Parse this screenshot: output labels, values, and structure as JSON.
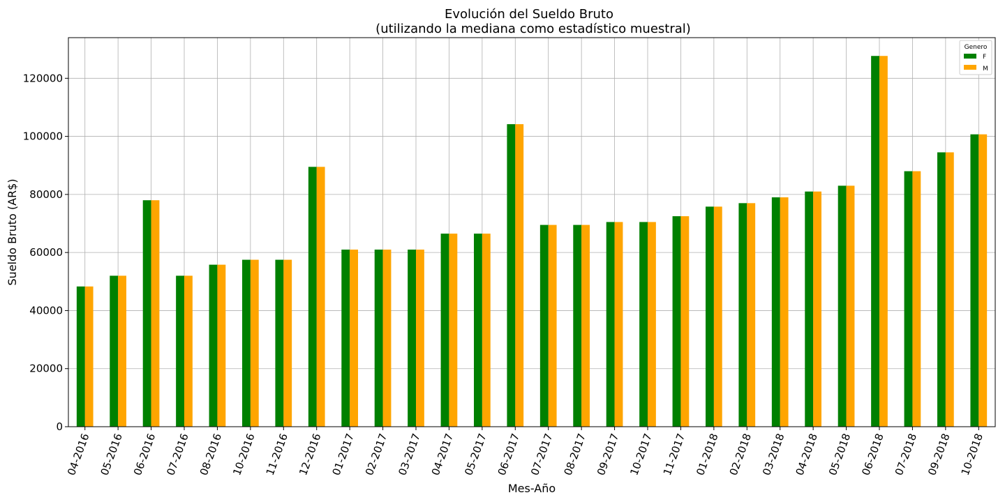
{
  "chart_data": {
    "type": "bar",
    "title_line1": "Evolución del Sueldo Bruto",
    "title_line2": "(utilizando la mediana como estadístico muestral)",
    "xlabel": "Mes-Año",
    "ylabel": "Sueldo Bruto (AR$)",
    "ylim": [
      0,
      134000
    ],
    "yticks": [
      0,
      20000,
      40000,
      60000,
      80000,
      100000,
      120000
    ],
    "grid": true,
    "legend_placement": "top-right",
    "legend_title": "Genero",
    "categories": [
      "04-2016",
      "05-2016",
      "06-2016",
      "07-2016",
      "08-2016",
      "10-2016",
      "11-2016",
      "12-2016",
      "01-2017",
      "02-2017",
      "03-2017",
      "04-2017",
      "05-2017",
      "06-2017",
      "07-2017",
      "08-2017",
      "09-2017",
      "10-2017",
      "11-2017",
      "01-2018",
      "02-2018",
      "03-2018",
      "04-2018",
      "05-2018",
      "06-2018",
      "07-2018",
      "09-2018",
      "10-2018"
    ],
    "series": [
      {
        "name": "F",
        "color": "#008000",
        "values": [
          48300,
          52000,
          78000,
          52000,
          55800,
          57500,
          57500,
          89500,
          61000,
          61000,
          61000,
          66500,
          66500,
          104200,
          69500,
          69500,
          70500,
          70500,
          72500,
          75800,
          77000,
          79000,
          81000,
          83000,
          127700,
          88000,
          94500,
          100700
        ]
      },
      {
        "name": "M",
        "color": "#ffa500",
        "values": [
          48300,
          52000,
          78000,
          52000,
          55800,
          57500,
          57500,
          89500,
          61000,
          61000,
          61000,
          66500,
          66500,
          104200,
          69500,
          69500,
          70500,
          70500,
          72500,
          75800,
          77000,
          79000,
          81000,
          83000,
          127700,
          88000,
          94500,
          100700
        ]
      }
    ]
  }
}
